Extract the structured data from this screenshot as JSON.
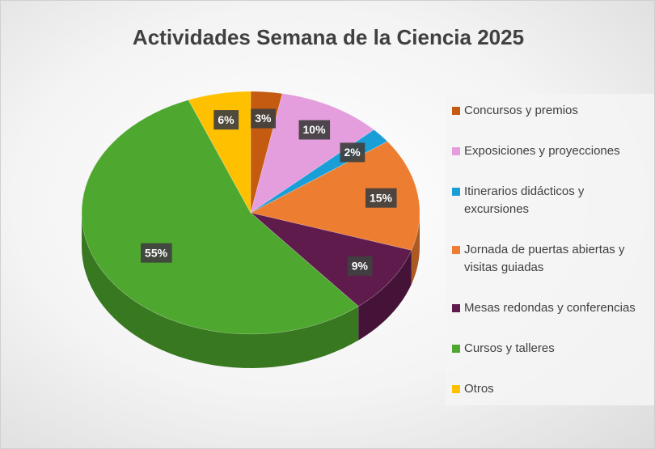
{
  "chart_data": {
    "type": "pie",
    "title": "Actividades Semana de la Ciencia 2025",
    "categories": [
      "Concursos y premios",
      "Exposiciones y proyecciones",
      "Itinerarios didácticos y excursiones",
      "Jornada de puertas abiertas y visitas guiadas",
      "Mesas redondas y conferencias",
      "Cursos y talleres",
      "Otros"
    ],
    "values": [
      3,
      10,
      2,
      15,
      9,
      55,
      6
    ],
    "value_labels": [
      "3%",
      "10%",
      "2%",
      "15%",
      "9%",
      "55%",
      "6%"
    ],
    "colors": [
      "#c55a11",
      "#e59edd",
      "#1a9ed8",
      "#ed7d31",
      "#5f1b4c",
      "#4ea72e",
      "#ffc000"
    ],
    "legend": "right"
  }
}
